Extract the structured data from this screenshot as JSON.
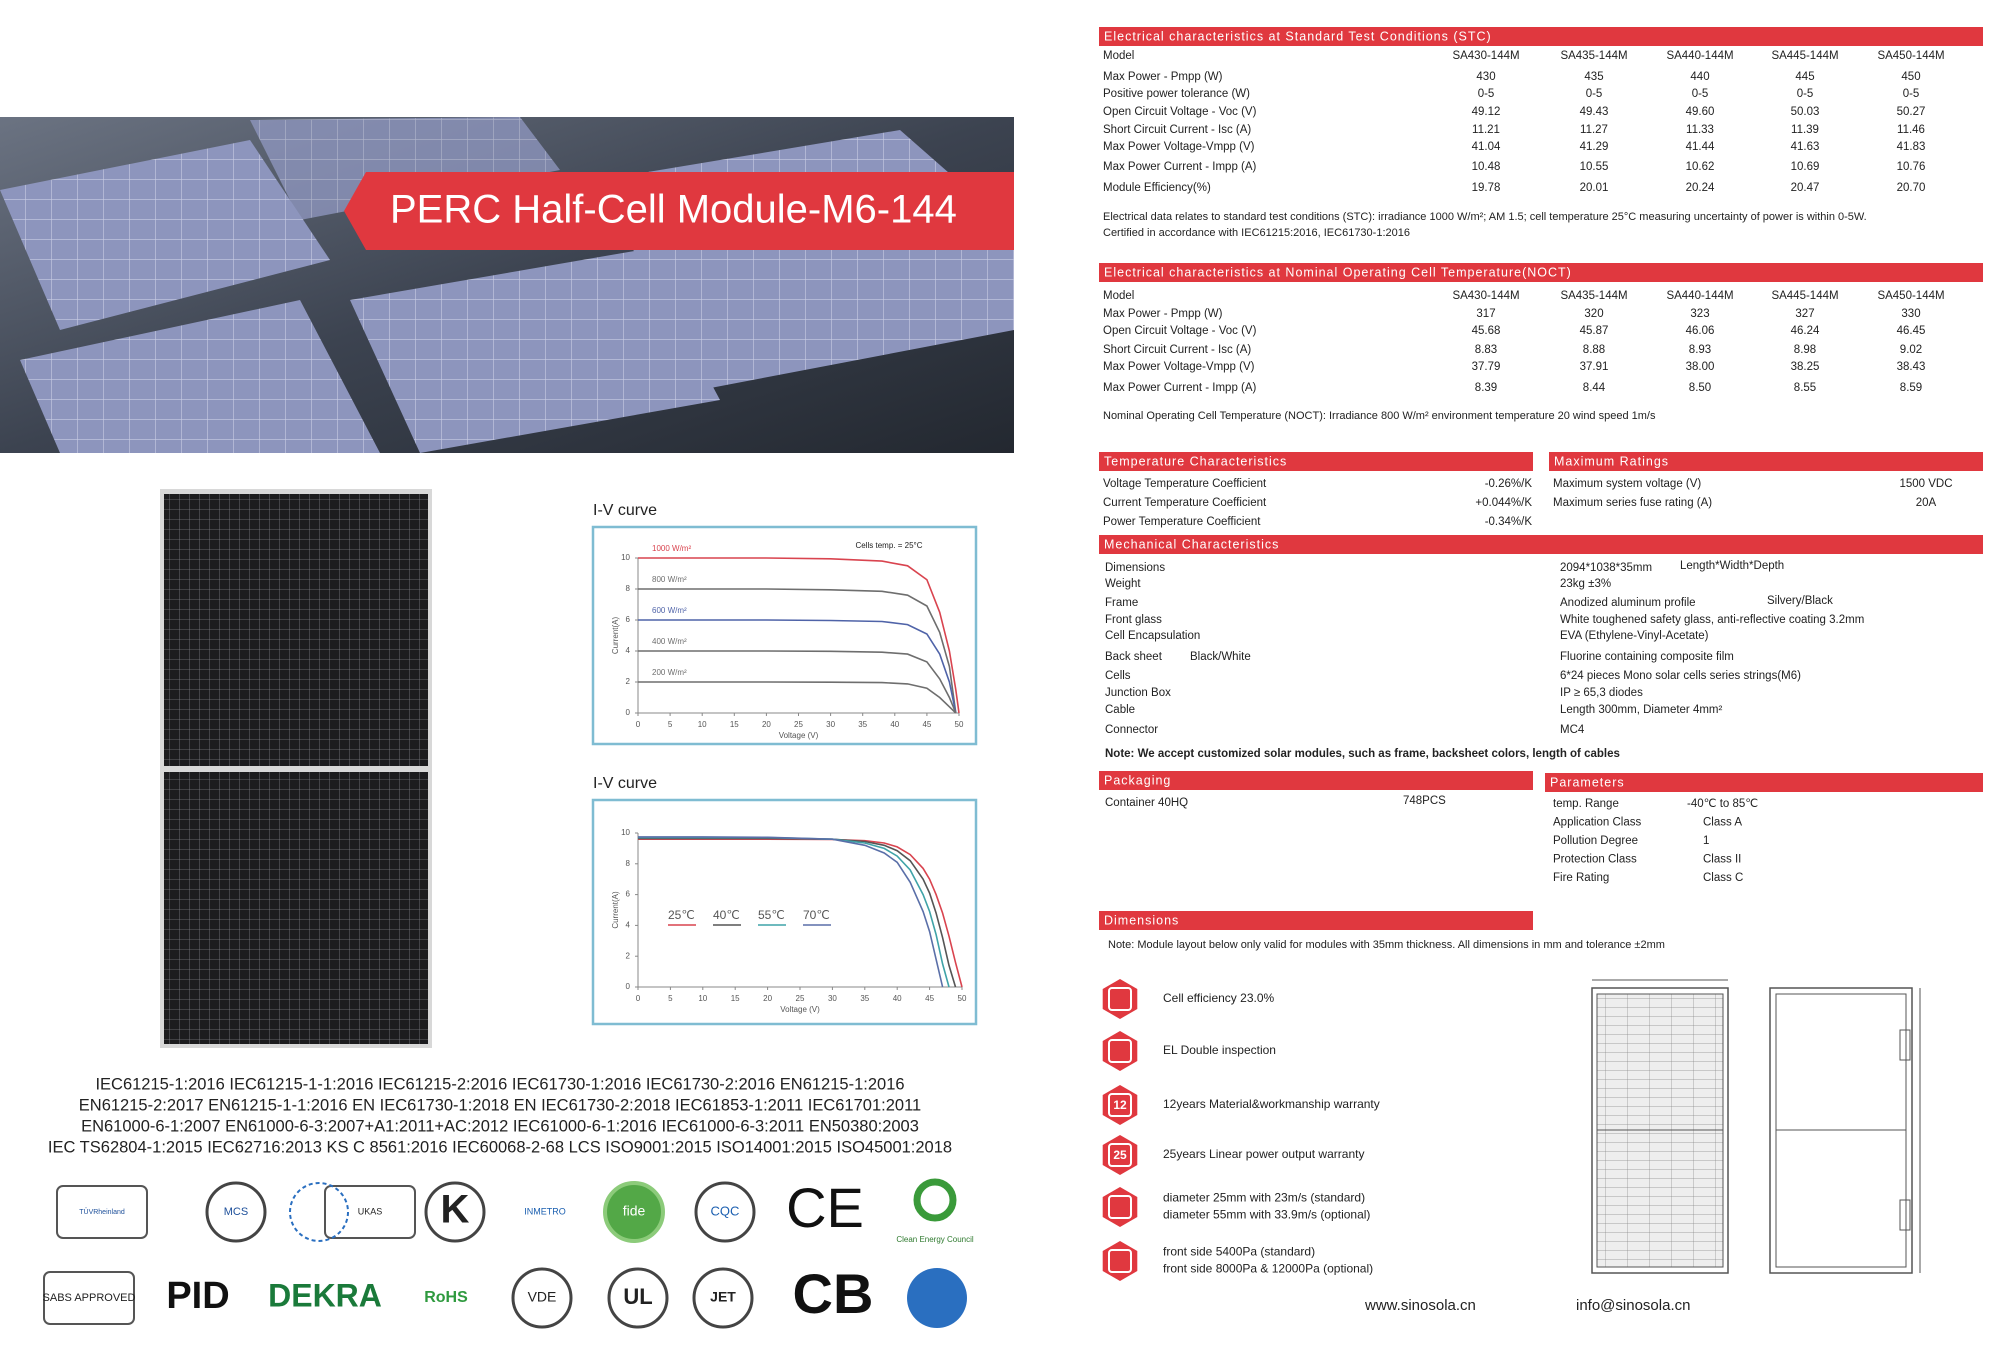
{
  "banner": {
    "title": "PERC Half-Cell Module-M6-144"
  },
  "chart_data": [
    {
      "type": "line",
      "title": "I-V curve",
      "annotation": "Cells temp. = 25°C",
      "x_label": "Voltage (V)",
      "y_label": "Current(A)",
      "x": [
        0,
        10,
        20,
        30,
        38,
        42,
        45,
        47,
        48.5,
        49.5,
        50
      ],
      "series": [
        {
          "name": "1000 W/m²",
          "color": "#d9444f",
          "values": [
            10,
            10,
            10,
            9.95,
            9.8,
            9.5,
            8.6,
            6.5,
            4,
            1.5,
            0
          ]
        },
        {
          "name": "800 W/m²",
          "color": "#6e6e6e",
          "values": [
            8,
            8,
            8,
            7.95,
            7.85,
            7.6,
            6.9,
            5.2,
            3,
            0,
            null
          ]
        },
        {
          "name": "600 W/m²",
          "color": "#4f63a8",
          "values": [
            6,
            6,
            6,
            5.97,
            5.9,
            5.7,
            5.1,
            3.8,
            2,
            0,
            null
          ]
        },
        {
          "name": "400 W/m²",
          "color": "#6e6e6e",
          "values": [
            4,
            4,
            4,
            3.98,
            3.92,
            3.8,
            3.3,
            2.2,
            1,
            0,
            null
          ]
        },
        {
          "name": "200 W/m²",
          "color": "#6e6e6e",
          "values": [
            2,
            2,
            2,
            1.99,
            1.96,
            1.88,
            1.6,
            1,
            0.4,
            0,
            null
          ]
        }
      ],
      "xlim": [
        0,
        50
      ],
      "ylim": [
        0,
        10
      ],
      "xticks": [
        0,
        5,
        10,
        15,
        20,
        25,
        30,
        35,
        40,
        45,
        50
      ],
      "yticks": [
        0,
        2,
        4,
        6,
        8,
        10
      ]
    },
    {
      "type": "line",
      "title": "I-V curve",
      "x_label": "Voltage (V)",
      "y_label": "Current(A)",
      "x": [
        0,
        10,
        20,
        30,
        35,
        38,
        40,
        42,
        44,
        45,
        46,
        47,
        48,
        49,
        50
      ],
      "series": [
        {
          "name": "25℃",
          "color": "#d9444f",
          "values": [
            9.6,
            9.6,
            9.6,
            9.58,
            9.5,
            9.35,
            9.1,
            8.6,
            7.7,
            7,
            6,
            4.8,
            3.3,
            1.6,
            0
          ]
        },
        {
          "name": "40℃",
          "color": "#555555",
          "values": [
            9.65,
            9.65,
            9.65,
            9.6,
            9.45,
            9.2,
            8.85,
            8.2,
            7,
            6.1,
            4.8,
            3.2,
            1.4,
            0,
            null
          ]
        },
        {
          "name": "55℃",
          "color": "#3fa3a8",
          "values": [
            9.7,
            9.7,
            9.7,
            9.6,
            9.35,
            9,
            8.5,
            7.6,
            6,
            4.9,
            3.4,
            1.5,
            0,
            null,
            null
          ]
        },
        {
          "name": "70℃",
          "color": "#5a6fa8",
          "values": [
            9.75,
            9.75,
            9.72,
            9.6,
            9.2,
            8.7,
            8.1,
            6.8,
            4.9,
            3.6,
            1.8,
            0,
            null,
            null,
            null
          ]
        }
      ],
      "xlim": [
        0,
        50
      ],
      "ylim": [
        0,
        10
      ],
      "xticks": [
        0,
        5,
        10,
        15,
        20,
        25,
        30,
        35,
        40,
        45,
        50
      ],
      "yticks": [
        0,
        2,
        4,
        6,
        8,
        10
      ]
    }
  ],
  "certifications": [
    "IEC61215-1:2016  IEC61215-1-1:2016  IEC61215-2:2016  IEC61730-1:2016  IEC61730-2:2016  EN61215-1:2016",
    "EN61215-2:2017  EN61215-1-1:2016  EN IEC61730-1:2018  EN IEC61730-2:2018  IEC61853-1:2011  IEC61701:2011",
    "EN61000-6-1:2007   EN61000-6-3:2007+A1:2011+AC:2012   IEC61000-6-1:2016   IEC61000-6-3:2011  EN50380:2003",
    "IEC TS62804-1:2015  IEC62716:2013  KS C 8561:2016  IEC60068-2-68 LCS  ISO9001:2015  ISO14001:2015  ISO45001:2018"
  ],
  "logos": {
    "row1": [
      "TÜVRheinland",
      "MCS",
      "UKAS",
      "K",
      "INMETRO",
      "fide",
      "CQC",
      "CE",
      "Clean Energy Council"
    ],
    "row2": [
      "SABS APPROVED",
      "PID",
      "DEKRA",
      "RoHS",
      "VDE",
      "UL",
      "JET",
      "CB"
    ]
  },
  "stc": {
    "title": "Electrical characteristics at Standard Test Conditions (STC)",
    "rows": [
      [
        "Model",
        "SA430-144M",
        "SA435-144M",
        "SA440-144M",
        "SA445-144M",
        "SA450-144M"
      ],
      [
        "Max Power - Pmpp (W)",
        "430",
        "435",
        "440",
        "445",
        "450"
      ],
      [
        "Positive power tolerance (W)",
        "0-5",
        "0-5",
        "0-5",
        "0-5",
        "0-5"
      ],
      [
        "Open Circuit Voltage - Voc (V)",
        "49.12",
        "49.43",
        "49.60",
        "50.03",
        "50.27"
      ],
      [
        "Short Circuit Current - Isc (A)",
        "11.21",
        "11.27",
        "11.33",
        "11.39",
        "11.46"
      ],
      [
        "Max Power Voltage-Vmpp (V)",
        "41.04",
        "41.29",
        "41.44",
        "41.63",
        "41.83"
      ],
      [
        "Max Power Current - Impp (A)",
        "10.48",
        "10.55",
        "10.62",
        "10.69",
        "10.76"
      ],
      [
        "Module Efficiency(%)",
        "19.78",
        "20.01",
        "20.24",
        "20.47",
        "20.70"
      ]
    ],
    "notes": [
      "Electrical data relates to standard test conditions (STC): irradiance 1000 W/m²; AM 1.5; cell temperature 25°C measuring uncertainty of power is within 0-5W.",
      "Certified in accordance with IEC61215:2016, IEC61730-1:2016"
    ]
  },
  "noct": {
    "title": "Electrical characteristics at Nominal Operating Cell Temperature(NOCT)",
    "rows": [
      [
        "Model",
        "SA430-144M",
        "SA435-144M",
        "SA440-144M",
        "SA445-144M",
        "SA450-144M"
      ],
      [
        "Max Power - Pmpp (W)",
        "317",
        "320",
        "323",
        "327",
        "330"
      ],
      [
        "Open Circuit Voltage - Voc (V)",
        "45.68",
        "45.87",
        "46.06",
        "46.24",
        "46.45"
      ],
      [
        "Short Circuit Current - Isc (A)",
        "8.83",
        "8.88",
        "8.93",
        "8.98",
        "9.02"
      ],
      [
        "Max Power Voltage-Vmpp (V)",
        "37.79",
        "37.91",
        "38.00",
        "38.25",
        "38.43"
      ],
      [
        "Max Power Current - Impp (A)",
        "8.39",
        "8.44",
        "8.50",
        "8.55",
        "8.59"
      ]
    ],
    "note": "Nominal Operating Cell Temperature (NOCT): Irradiance 800 W/m²    environment temperature 20     wind speed 1m/s"
  },
  "temperature": {
    "title": "Temperature Characteristics",
    "rows": [
      [
        "Voltage Temperature Coefficient",
        "-0.26%/K"
      ],
      [
        "Current Temperature Coefficient",
        "+0.044%/K"
      ],
      [
        "Power Temperature Coefficient",
        "-0.34%/K"
      ]
    ]
  },
  "ratings": {
    "title": "Maximum Ratings",
    "rows": [
      [
        "Maximum system voltage (V)",
        "1500 VDC"
      ],
      [
        "Maximum series fuse rating (A)",
        "20A"
      ]
    ]
  },
  "mechanical": {
    "title": "Mechanical Characteristics",
    "rows": [
      {
        "label": "Dimensions",
        "value": "2094*1038*35mm",
        "extra": "Length*Width*Depth"
      },
      {
        "label": "Weight",
        "value": "23kg ±3%"
      },
      {
        "label": "Frame",
        "value": "Anodized aluminum profile",
        "extra": "Silvery/Black"
      },
      {
        "label": "Front glass",
        "value": "White toughened safety glass, anti-reflective coating 3.2mm"
      },
      {
        "label": "Cell Encapsulation",
        "value": "EVA (Ethylene-Vinyl-Acetate)"
      },
      {
        "label": "Back sheet",
        "label_note": "Black/White",
        "value": "Fluorine containing composite film"
      },
      {
        "label": "Cells",
        "value": "6*24 pieces Mono solar cells series strings(M6)"
      },
      {
        "label": "Junction Box",
        "value": "IP ≥ 65,3 diodes"
      },
      {
        "label": "Cable",
        "value": "Length 300mm, Diameter 4mm²"
      },
      {
        "label": "Connector",
        "value": "MC4"
      }
    ],
    "note": "Note: We accept customized solar modules, such as frame, backsheet colors, length of cables"
  },
  "packaging": {
    "title": "Packaging",
    "rows": [
      [
        "Container 40HQ",
        "748PCS"
      ]
    ]
  },
  "parameters": {
    "title": "Parameters",
    "rows": [
      [
        "temp. Range",
        "-40℃ to 85℃"
      ],
      [
        "Application Class",
        "Class A"
      ],
      [
        "Pollution Degree",
        "1"
      ],
      [
        "Protection Class",
        "Class II"
      ],
      [
        "Fire Rating",
        "Class C"
      ]
    ]
  },
  "dimensions": {
    "title": "Dimensions",
    "note": "Note: Module layout below only valid for modules with 35mm thickness. All dimensions in mm and tolerance ±2mm"
  },
  "features": [
    {
      "lines": [
        "Cell efficiency    23.0%"
      ]
    },
    {
      "lines": [
        "EL Double inspection"
      ]
    },
    {
      "icon": "12",
      "lines": [
        "12years Material&workmanship warranty"
      ]
    },
    {
      "icon": "25",
      "lines": [
        "25years Linear power output warranty"
      ]
    },
    {
      "lines": [
        "diameter 25mm with 23m/s (standard)",
        "diameter 55mm with 33.9m/s (optional)"
      ]
    },
    {
      "lines": [
        "front side 5400Pa (standard)",
        "front side 8000Pa & 12000Pa (optional)"
      ]
    }
  ],
  "footer": {
    "website": "www.sinosola.cn",
    "email": "info@sinosola.cn"
  }
}
